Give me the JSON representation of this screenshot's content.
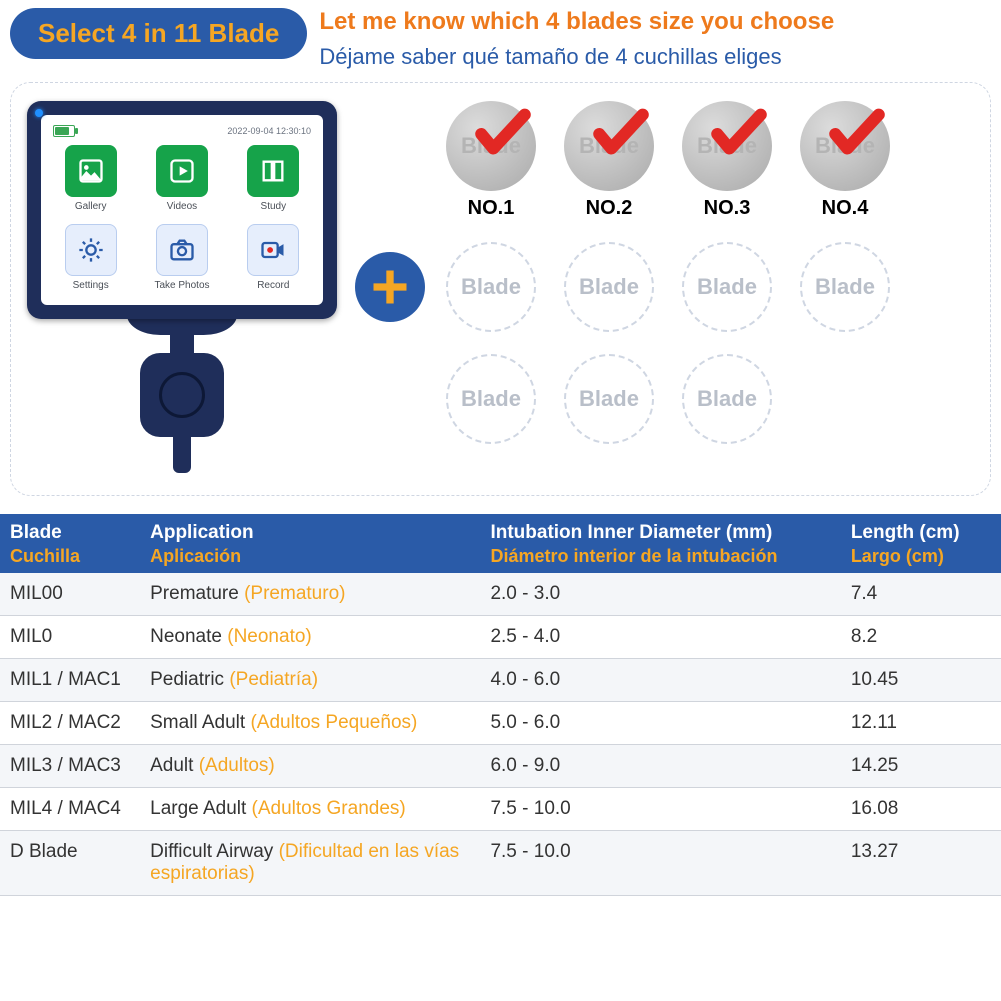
{
  "colors": {
    "brand_blue": "#2a5ba8",
    "brand_orange": "#ee7a1c",
    "accent_gold": "#f5a623",
    "device_navy": "#1f2e5a",
    "icon_green": "#16a34a",
    "check_red": "#e22824",
    "dash_border": "#cfd6e2",
    "row_alt": "#f4f6f9",
    "row_border": "#d0d4db",
    "placeholder_text": "#b9bfc9"
  },
  "header": {
    "pill": "Select 4 in 11 Blade",
    "line_en": "Let me know which 4 blades size you choose",
    "line_es": "Déjame saber qué tamaño de 4 cuchillas eliges"
  },
  "device": {
    "timestamp": "2022-09-04 12:30:10",
    "apps": [
      {
        "name": "gallery-icon",
        "label": "Gallery",
        "style": "green"
      },
      {
        "name": "videos-icon",
        "label": "Videos",
        "style": "green"
      },
      {
        "name": "study-icon",
        "label": "Study",
        "style": "green"
      },
      {
        "name": "settings-icon",
        "label": "Settings",
        "style": "blue"
      },
      {
        "name": "take-photos-icon",
        "label": "Take Photos",
        "style": "blue"
      },
      {
        "name": "record-icon",
        "label": "Record",
        "style": "blue"
      }
    ]
  },
  "blades": {
    "placeholder": "Blade",
    "selected_circle_text": "Blade",
    "selected": [
      {
        "no": "NO.1"
      },
      {
        "no": "NO.2"
      },
      {
        "no": "NO.3"
      },
      {
        "no": "NO.4"
      }
    ],
    "empty_rows": [
      4,
      3
    ]
  },
  "table": {
    "headers": [
      {
        "en": "Blade",
        "es": "Cuchilla"
      },
      {
        "en": "Application",
        "es": "Aplicación"
      },
      {
        "en": "Intubation Inner Diameter   (mm)",
        "es": "Diámetro interior de la intubación"
      },
      {
        "en": "Length (cm)",
        "es": "Largo (cm)"
      }
    ],
    "rows": [
      {
        "blade": "MIL00",
        "app_en": "Premature",
        "app_es": "(Prematuro)",
        "dia": "2.0 - 3.0",
        "len": "7.4"
      },
      {
        "blade": "MIL0",
        "app_en": "Neonate",
        "app_es": "(Neonato)",
        "dia": "2.5 - 4.0",
        "len": "8.2"
      },
      {
        "blade": "MIL1 / MAC1",
        "app_en": "Pediatric",
        "app_es": "(Pediatría)",
        "dia": "4.0 - 6.0",
        "len": "10.45"
      },
      {
        "blade": "MIL2 / MAC2",
        "app_en": "Small Adult",
        "app_es": "(Adultos Pequeños)",
        "dia": "5.0 - 6.0",
        "len": "12.11"
      },
      {
        "blade": "MIL3 / MAC3",
        "app_en": "Adult",
        "app_es": "(Adultos)",
        "dia": "6.0 - 9.0",
        "len": "14.25"
      },
      {
        "blade": "MIL4 / MAC4",
        "app_en": "Large Adult",
        "app_es": "(Adultos Grandes)",
        "dia": "7.5 - 10.0",
        "len": "16.08"
      },
      {
        "blade": "D Blade",
        "app_en": "Difficult Airway",
        "app_es": "(Dificultad en las vías espiratorias)",
        "dia": "7.5 - 10.0",
        "len": "13.27"
      }
    ],
    "col_widths_pct": [
      14,
      34,
      36,
      16
    ]
  }
}
